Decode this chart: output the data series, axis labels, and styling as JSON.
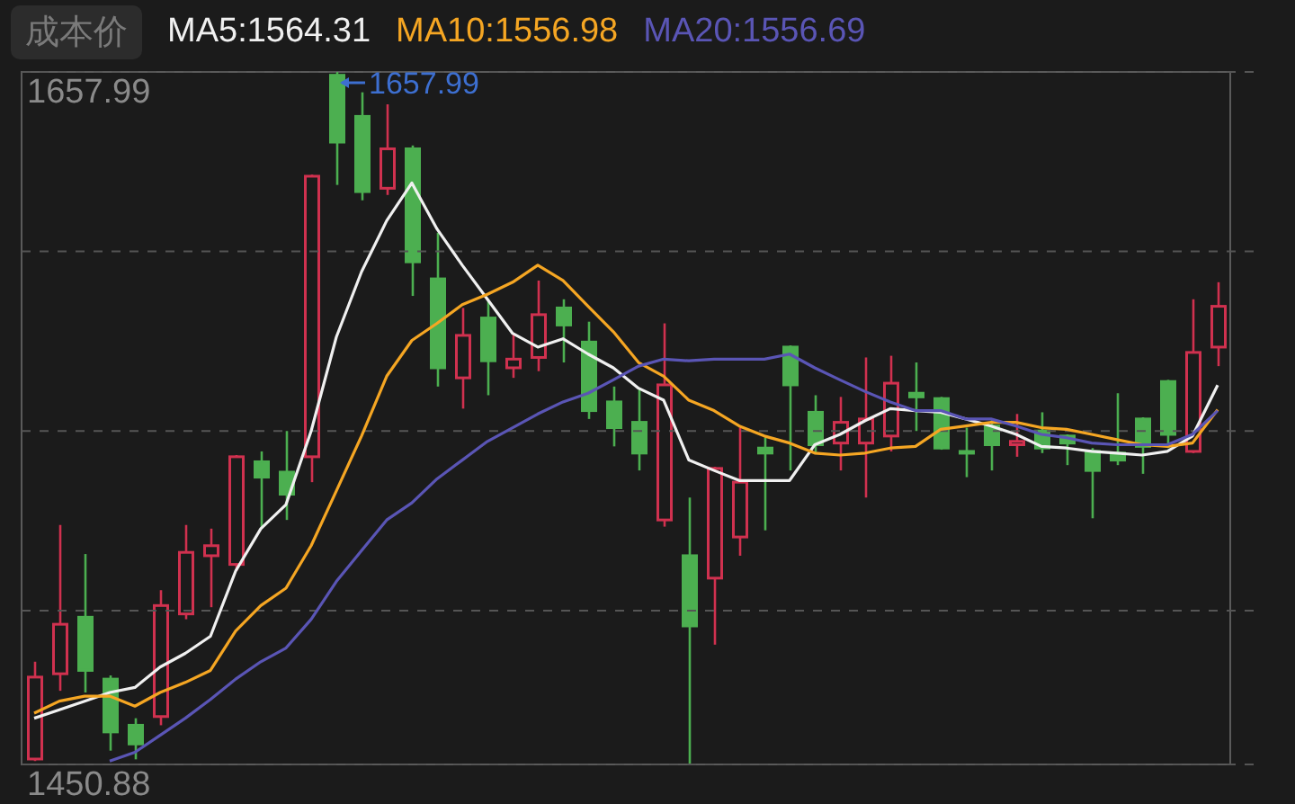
{
  "chart_data": {
    "type": "candlestick",
    "categories": [
      null,
      null,
      null,
      null,
      null,
      null,
      null,
      null,
      null,
      null,
      null,
      null,
      null,
      null,
      null,
      null,
      null,
      null,
      null,
      null,
      null,
      null,
      null,
      null,
      null,
      null,
      null,
      null,
      null,
      null,
      null,
      null,
      null,
      null,
      null,
      null,
      null,
      null,
      null,
      null,
      null,
      null,
      null,
      null,
      null,
      null,
      null,
      null
    ],
    "ohlc": [
      [
        1452.5,
        1481.6,
        1451.9,
        1477.0
      ],
      [
        1478.0,
        1522.5,
        1472.9,
        1492.8
      ],
      [
        1494.9,
        1513.8,
        1472.4,
        1479.0
      ],
      [
        1476.4,
        1477.5,
        1455.0,
        1460.6
      ],
      [
        1462.6,
        1464.7,
        1452.4,
        1457.0
      ],
      [
        1465.2,
        1503.0,
        1462.6,
        1498.4
      ],
      [
        1495.9,
        1522.5,
        1494.3,
        1514.3
      ],
      [
        1513.3,
        1521.4,
        1497.9,
        1516.3
      ],
      [
        1510.7,
        1543.4,
        1508.7,
        1542.9
      ],
      [
        1541.4,
        1544.5,
        1521.4,
        1536.8
      ],
      [
        1538.3,
        1550.6,
        1524.0,
        1531.7
      ],
      [
        1542.9,
        1627.3,
        1535.3,
        1626.8
      ],
      [
        1657.0,
        1657.99,
        1624.2,
        1637.0
      ],
      [
        1644.7,
        1651.9,
        1619.6,
        1622.2
      ],
      [
        1623.2,
        1648.3,
        1621.2,
        1635.0
      ],
      [
        1635.0,
        1636.0,
        1591.0,
        1601.2
      ],
      [
        1596.1,
        1609.9,
        1563.9,
        1569.5
      ],
      [
        1566.5,
        1587.4,
        1557.3,
        1579.2
      ],
      [
        1584.4,
        1589.5,
        1561.3,
        1571.6
      ],
      [
        1569.5,
        1579.8,
        1566.5,
        1572.1
      ],
      [
        1572.6,
        1595.6,
        1568.5,
        1585.4
      ],
      [
        1587.4,
        1590.0,
        1571.1,
        1582.3
      ],
      [
        1577.2,
        1583.3,
        1554.2,
        1556.7
      ],
      [
        1559.3,
        1563.9,
        1546.0,
        1551.6
      ],
      [
        1553.2,
        1563.4,
        1538.8,
        1544.0
      ],
      [
        1524.0,
        1582.8,
        1522.0,
        1564.4
      ],
      [
        1513.3,
        1530.7,
        1450.88,
        1492.3
      ],
      [
        1506.6,
        1539.9,
        1486.7,
        1539.4
      ],
      [
        1518.9,
        1551.6,
        1513.3,
        1535.3
      ],
      [
        1545.5,
        1548.6,
        1520.9,
        1544.0
      ],
      [
        1575.7,
        1576.2,
        1538.8,
        1564.4
      ],
      [
        1556.2,
        1561.3,
        1544.0,
        1546.5
      ],
      [
        1547.0,
        1560.8,
        1538.8,
        1553.2
      ],
      [
        1547.0,
        1572.6,
        1530.7,
        1554.2
      ],
      [
        1549.1,
        1573.1,
        1544.5,
        1564.9
      ],
      [
        1561.9,
        1571.1,
        1550.6,
        1560.8
      ],
      [
        1560.3,
        1560.8,
        1545.0,
        1545.5
      ],
      [
        1544.5,
        1551.6,
        1536.8,
        1544.0
      ],
      [
        1552.1,
        1554.2,
        1538.8,
        1546.5
      ],
      [
        1546.5,
        1555.7,
        1542.9,
        1547.5
      ],
      [
        1550.6,
        1556.2,
        1544.0,
        1545.5
      ],
      [
        1549.1,
        1549.6,
        1540.4,
        1547.0
      ],
      [
        1544.5,
        1545.5,
        1524.5,
        1538.8
      ],
      [
        1544.0,
        1561.9,
        1540.4,
        1541.9
      ],
      [
        1554.2,
        1554.7,
        1537.8,
        1546.0
      ],
      [
        1565.4,
        1565.9,
        1545.5,
        1549.6
      ],
      [
        1544.5,
        1590.0,
        1544.0,
        1574.1
      ],
      [
        1575.7,
        1595.1,
        1570.0,
        1587.9
      ]
    ],
    "colors": [
      "#d0314f",
      "#d0314f",
      "#4caf50",
      "#4caf50",
      "#4caf50",
      "#d0314f",
      "#d0314f",
      "#d0314f",
      "#d0314f",
      "#4caf50",
      "#4caf50",
      "#d0314f",
      "#4caf50",
      "#4caf50",
      "#d0314f",
      "#4caf50",
      "#4caf50",
      "#d0314f",
      "#4caf50",
      "#d0314f",
      "#d0314f",
      "#4caf50",
      "#4caf50",
      "#4caf50",
      "#4caf50",
      "#d0314f",
      "#4caf50",
      "#d0314f",
      "#d0314f",
      "#4caf50",
      "#4caf50",
      "#4caf50",
      "#d0314f",
      "#d0314f",
      "#d0314f",
      "#4caf50",
      "#4caf50",
      "#4caf50",
      "#4caf50",
      "#d0314f",
      "#4caf50",
      "#4caf50",
      "#4caf50",
      "#4caf50",
      "#4caf50",
      "#4caf50",
      "#d0314f",
      "#d0314f"
    ],
    "series": [
      {
        "name": "MA5:1564.31",
        "type": "line",
        "color": "#f0f0f0",
        "values": [
          1464.7,
          1467.2,
          1469.8,
          1472.4,
          1473.9,
          1480.0,
          1484.1,
          1489.2,
          1508.7,
          1521.4,
          1528.6,
          1550.6,
          1578.7,
          1598.2,
          1613.5,
          1624.8,
          1611.0,
          1600.2,
          1590.0,
          1579.8,
          1575.7,
          1578.2,
          1573.6,
          1569.5,
          1563.4,
          1559.8,
          1541.9,
          1538.8,
          1535.8,
          1535.8,
          1535.8,
          1546.5,
          1549.6,
          1553.7,
          1557.3,
          1556.7,
          1556.2,
          1554.2,
          1552.1,
          1549.6,
          1546.0,
          1545.5,
          1544.5,
          1544.0,
          1543.4,
          1544.5,
          1549.1,
          1564.3
        ]
      },
      {
        "name": "MA10:1556.98",
        "type": "line",
        "color": "#f5a623",
        "values": [
          1466.2,
          1469.8,
          1471.3,
          1471.3,
          1468.3,
          1472.4,
          1475.4,
          1479.0,
          1490.8,
          1498.4,
          1503.6,
          1516.3,
          1532.7,
          1549.1,
          1567.0,
          1577.7,
          1582.8,
          1588.4,
          1591.5,
          1595.1,
          1600.2,
          1595.6,
          1587.9,
          1580.3,
          1571.1,
          1567.0,
          1559.8,
          1556.7,
          1552.1,
          1549.1,
          1547.0,
          1544.0,
          1543.4,
          1544.0,
          1545.5,
          1546.0,
          1551.1,
          1552.1,
          1553.2,
          1553.2,
          1551.6,
          1551.1,
          1549.6,
          1548.0,
          1546.5,
          1546.0,
          1547.0,
          1557.0
        ]
      },
      {
        "name": "MA20:1556.69",
        "type": "line",
        "color": "#5a55b5",
        "values": [
          null,
          null,
          null,
          1451.9,
          1454.5,
          1459.6,
          1464.7,
          1470.3,
          1476.4,
          1481.6,
          1485.7,
          1494.3,
          1505.6,
          1514.8,
          1524.0,
          1529.1,
          1536.3,
          1541.9,
          1547.5,
          1551.6,
          1555.7,
          1559.3,
          1561.9,
          1565.9,
          1570.0,
          1572.1,
          1571.6,
          1572.1,
          1572.1,
          1572.1,
          1573.6,
          1569.5,
          1565.9,
          1562.4,
          1559.3,
          1556.7,
          1556.7,
          1554.2,
          1554.2,
          1552.1,
          1549.6,
          1548.6,
          1547.0,
          1546.5,
          1546.5,
          1546.5,
          1549.6,
          1556.7
        ]
      }
    ],
    "ylim": [
      1450.88,
      1657.99
    ],
    "yticks": [
      1657.99,
      {
        "value": 1604.3,
        "label": null
      },
      {
        "value": 1550.6,
        "label": null
      },
      {
        "value": 1496.9,
        "label": null
      },
      1450.88
    ],
    "grid": "y",
    "legend": "top left",
    "annotations": [
      "成本价",
      "1657.99"
    ]
  }
}
